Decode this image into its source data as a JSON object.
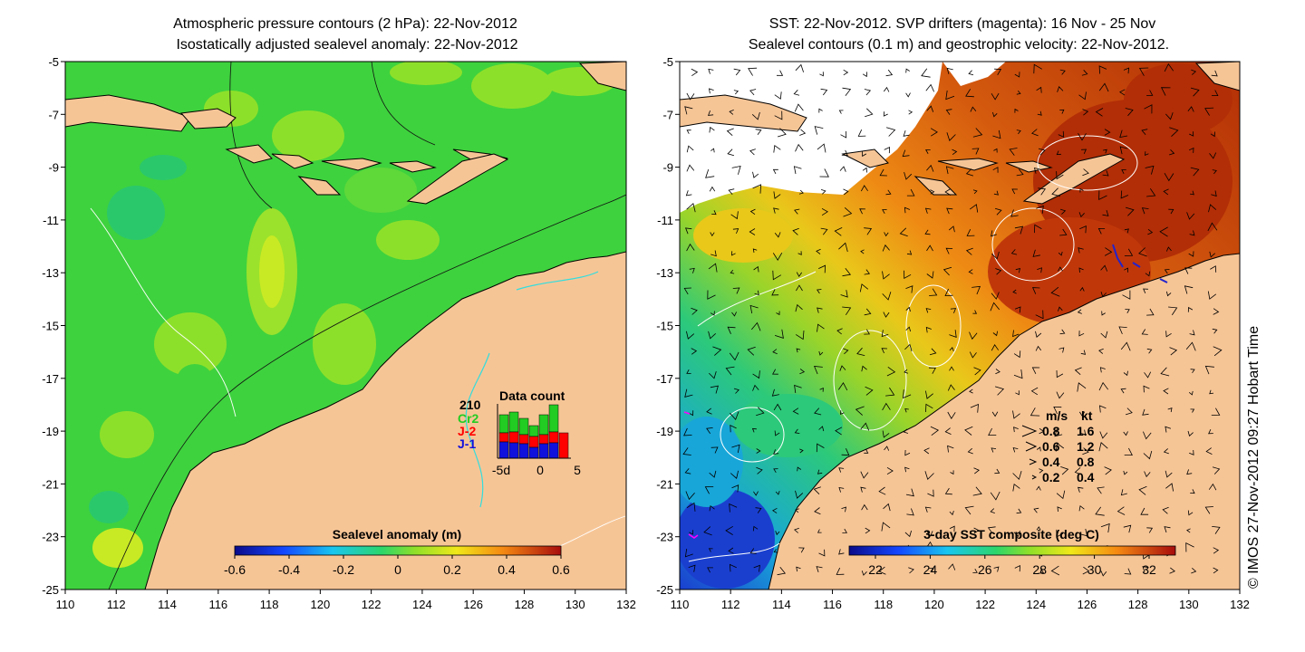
{
  "left_panel": {
    "title_line1": "Atmospheric pressure contours (2 hPa): 22-Nov-2012",
    "title_line2": "Isostatically adjusted sealevel anomaly: 22-Nov-2012",
    "colorbar": {
      "title": "Sealevel anomaly (m)",
      "ticks": [
        "-0.6",
        "-0.4",
        "-0.2",
        "0",
        "0.2",
        "0.4",
        "0.6"
      ]
    },
    "inset": {
      "title": "Data count",
      "max_label": "210",
      "legend": [
        {
          "label": "Cr2",
          "color": "#22cc22"
        },
        {
          "label": "J-2",
          "color": "#ff0000"
        },
        {
          "label": "J-1",
          "color": "#1111dd"
        }
      ],
      "x_labels": [
        "-5d",
        "0",
        "5"
      ]
    }
  },
  "right_panel": {
    "title_line1": "SST: 22-Nov-2012. SVP drifters (magenta): 16 Nov - 25 Nov",
    "title_line2": "Sealevel contours (0.1 m) and geostrophic velocity: 22-Nov-2012.",
    "colorbar": {
      "title": "3-day SST composite (deg C)",
      "ticks": [
        "22",
        "24",
        "26",
        "28",
        "30",
        "32"
      ]
    },
    "velocity_legend": {
      "header_ms": "m/s",
      "header_kt": "kt",
      "rows": [
        {
          "ms": "0.8",
          "kt": "1.6"
        },
        {
          "ms": "0.6",
          "kt": "1.2"
        },
        {
          "ms": "0.4",
          "kt": "0.8"
        },
        {
          "ms": "0.2",
          "kt": "0.4"
        }
      ]
    }
  },
  "axes": {
    "x_ticks": [
      "110",
      "112",
      "114",
      "116",
      "118",
      "120",
      "122",
      "124",
      "126",
      "128",
      "130",
      "132"
    ],
    "y_ticks": [
      "-5",
      "-7",
      "-9",
      "-11",
      "-13",
      "-15",
      "-17",
      "-19",
      "-21",
      "-23",
      "-25"
    ]
  },
  "credit": "© IMOS 27-Nov-2012 09:27 Hobart Time",
  "colors": {
    "land": "#f6c596",
    "sla_base": "#3ed23e",
    "sst_warm": "#c63e08",
    "sst_cool": "#1a4fd0"
  }
}
